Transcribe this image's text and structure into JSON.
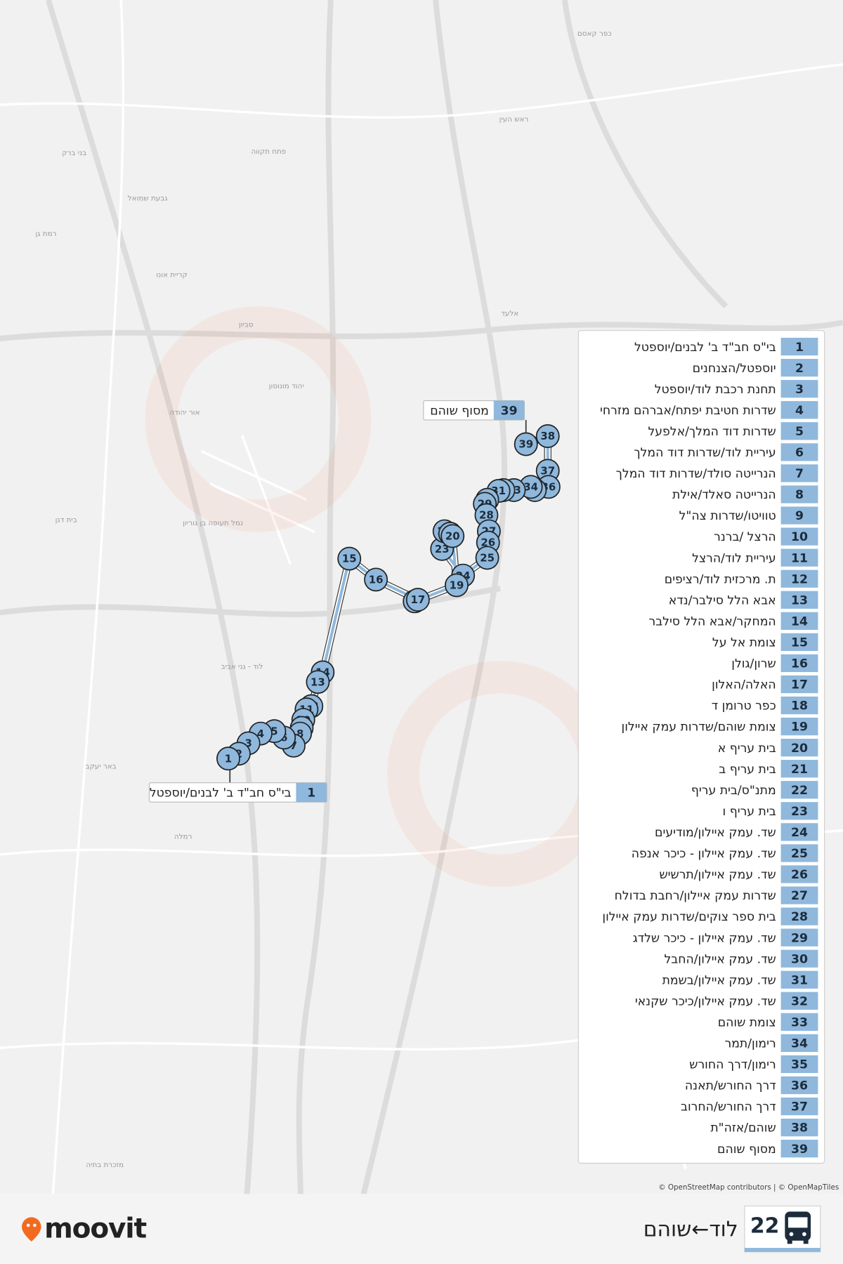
{
  "map": {
    "places": [
      "כפר קאסם",
      "ראש העין",
      "אלעד",
      "פתח תקווה",
      "קריית אונו",
      "סביון",
      "יהוד מונוסון",
      "אור יהודה",
      "בית דגן",
      "לוד - גני אביב",
      "באר יעקב",
      "רמלה",
      "מזכרת בתיה",
      "בני ברק",
      "גבעת שמואל",
      "רמת גן",
      "נמל תעופה בן גוריון"
    ],
    "attribution": "© OpenStreetMap contributors | © OpenMapTiles"
  },
  "stops": [
    {
      "number": 1,
      "name": "בי\"ס חב\"ד ב' לבנים/יוספטל"
    },
    {
      "number": 2,
      "name": "יוספטל/הצנחנים"
    },
    {
      "number": 3,
      "name": "תחנת רכבת לוד/יוספטל"
    },
    {
      "number": 4,
      "name": "שדרות חטיבת יפתח/אברהם מזרחי"
    },
    {
      "number": 5,
      "name": "שדרות דוד המלך/אלפעל"
    },
    {
      "number": 6,
      "name": "עיריית לוד/שדרות דוד המלך"
    },
    {
      "number": 7,
      "name": "הנרייטה סולד/שדרות דוד המלך"
    },
    {
      "number": 8,
      "name": "הנרייטה סאלד/אילת"
    },
    {
      "number": 9,
      "name": "טוויטו/שדרות צה\"ל"
    },
    {
      "number": 10,
      "name": "הרצל /ברנר"
    },
    {
      "number": 11,
      "name": "עיריית לוד/הרצל"
    },
    {
      "number": 12,
      "name": "ת. מרכזית לוד/רציפים"
    },
    {
      "number": 13,
      "name": "אבא הלל סילבר/נדא"
    },
    {
      "number": 14,
      "name": "המחקר/אבא הלל סילבר"
    },
    {
      "number": 15,
      "name": "צומת אל על"
    },
    {
      "number": 16,
      "name": "שרון/גולן"
    },
    {
      "number": 17,
      "name": "האלה/האלון"
    },
    {
      "number": 18,
      "name": "כפר טרומן ד"
    },
    {
      "number": 19,
      "name": "צומת שוהם/שדרות עמק איילון"
    },
    {
      "number": 20,
      "name": "בית עריף א"
    },
    {
      "number": 21,
      "name": "בית עריף ב"
    },
    {
      "number": 22,
      "name": "מתנ\"ס/בית עריף"
    },
    {
      "number": 23,
      "name": "בית עריף ו"
    },
    {
      "number": 24,
      "name": "שד. עמק איילון/מודיעים"
    },
    {
      "number": 25,
      "name": "שד. עמק איילון - כיכר אנפה"
    },
    {
      "number": 26,
      "name": "שד. עמק איילון/תרשיש"
    },
    {
      "number": 27,
      "name": "שדרות עמק איילון/רחבת בדולח"
    },
    {
      "number": 28,
      "name": "בית ספר צוקים/שדרות עמק איילון"
    },
    {
      "number": 29,
      "name": "שד. עמק איילון - כיכר שלדג"
    },
    {
      "number": 30,
      "name": "שד. עמק איילון/החבל"
    },
    {
      "number": 31,
      "name": "שד. עמק איילון/בשמת"
    },
    {
      "number": 32,
      "name": "שד. עמק איילון/כיכר שקנאי"
    },
    {
      "number": 33,
      "name": "צומת שוהם"
    },
    {
      "number": 34,
      "name": "רימון/תמר"
    },
    {
      "number": 35,
      "name": "רימון/דרך החורש"
    },
    {
      "number": 36,
      "name": "דרך החורש/תאנה"
    },
    {
      "number": 37,
      "name": "דרך החורש/החרוב"
    },
    {
      "number": 38,
      "name": "שוהם/אזה\"ת"
    },
    {
      "number": 39,
      "name": "מסוף שוהם"
    }
  ],
  "route": {
    "number": 22,
    "name": "לוד←שוהם"
  },
  "brand": "moovit"
}
